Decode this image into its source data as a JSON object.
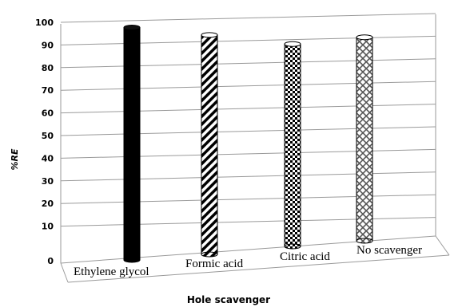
{
  "chart_data": {
    "type": "bar",
    "title": "",
    "xlabel": "Hole scavenger",
    "ylabel": "%RE",
    "ylim": [
      0,
      100
    ],
    "yticks": [
      0,
      10,
      20,
      30,
      40,
      50,
      60,
      70,
      80,
      90,
      100
    ],
    "categories": [
      "Ethylene glycol",
      "Formic acid",
      "Citric acid",
      "No scavenger"
    ],
    "values": [
      97,
      93,
      89,
      92
    ],
    "grid": true,
    "legend": "none",
    "bar_patterns": [
      "solid",
      "diagonal-stripes",
      "checkerboard",
      "crosshatch"
    ],
    "colors": {
      "bar": "#000000",
      "grid": "#9a9a9a",
      "background": "#ffffff"
    }
  }
}
